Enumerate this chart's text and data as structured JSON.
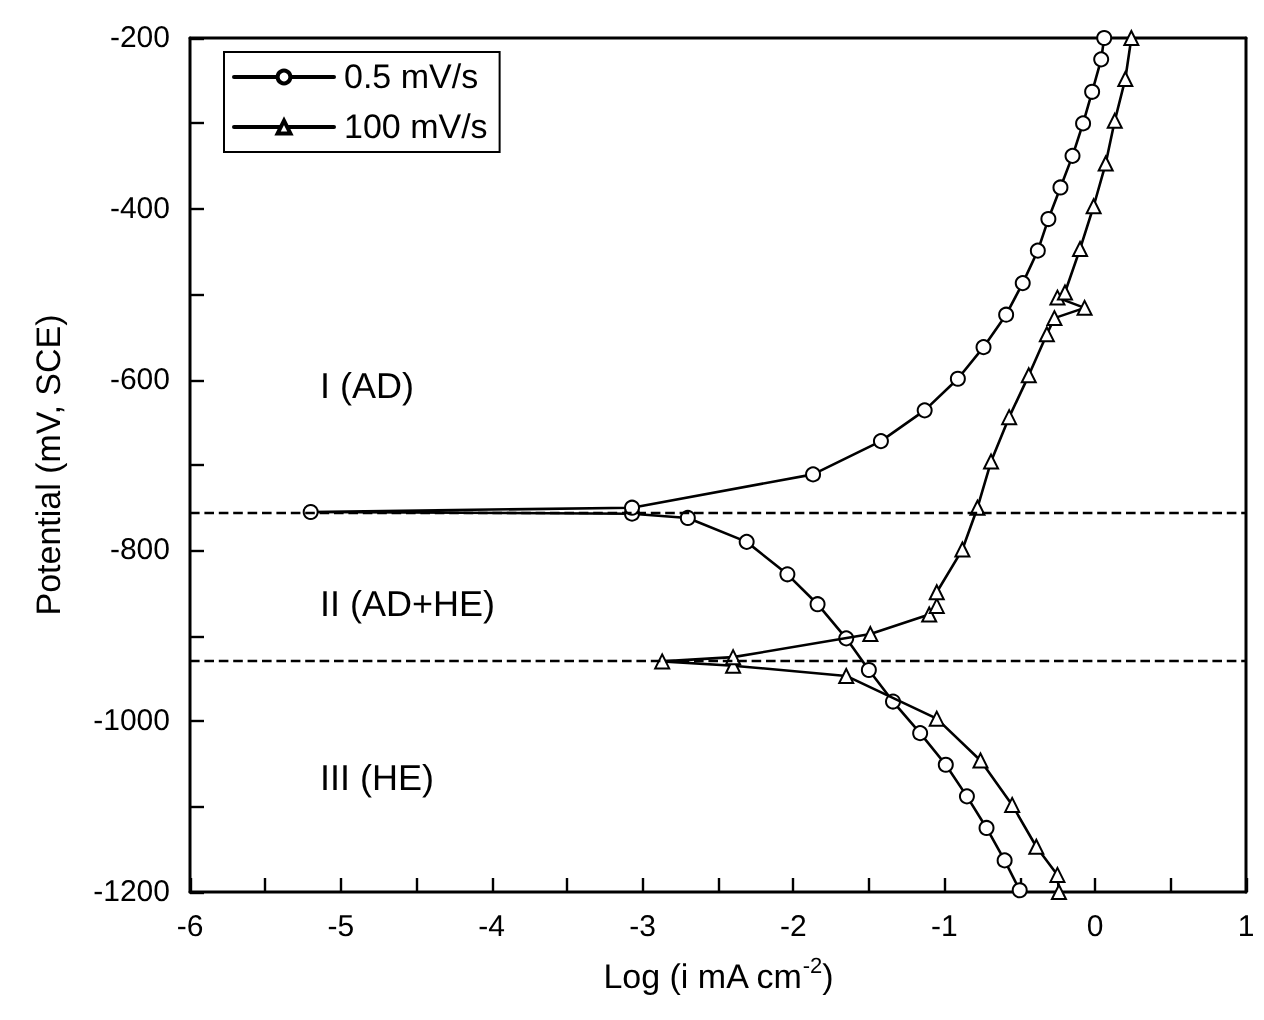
{
  "chart_data": {
    "type": "line",
    "xlabel": "Log (i mA cm$^{-2}$)",
    "ylabel": "Potential (mV, SCE)",
    "xlim": [
      -6,
      1
    ],
    "xticks": [
      -6,
      -5,
      -4,
      -3,
      -2,
      -1,
      0,
      1
    ],
    "ylim": [
      -1200,
      -200
    ],
    "yticks": [
      -1200,
      -1000,
      -800,
      -600,
      -400,
      -200
    ],
    "grid": false,
    "legend": "top left",
    "line_style": "solid",
    "annotations": [
      "I (AD)",
      "II (AD+HE)",
      "III (HE)"
    ],
    "ref_lines": [
      {
        "axis": "y",
        "value": -755,
        "line_style": "dashed"
      },
      {
        "axis": "y",
        "value": -930,
        "line_style": "dashed"
      }
    ],
    "series": [
      {
        "name": "0.5 mV/s",
        "color": "#000000",
        "marker": "circle",
        "x": [
          -0.5,
          -0.6,
          -0.72,
          -0.85,
          -0.99,
          -1.16,
          -1.34,
          -1.5,
          -1.65,
          -1.84,
          -2.04,
          -2.31,
          -2.7,
          -3.07,
          -5.2,
          -3.07,
          -1.87,
          -1.42,
          -1.13,
          -0.91,
          -0.74,
          -0.59,
          -0.48,
          -0.38,
          -0.31,
          -0.23,
          -0.15,
          -0.08,
          -0.02,
          0.04,
          0.06
        ],
        "values": [
          -1198,
          -1163,
          -1125,
          -1088,
          -1051,
          -1014,
          -977,
          -940,
          -903,
          -863,
          -828,
          -790,
          -762,
          -757,
          -755,
          -750,
          -711,
          -672,
          -636,
          -599,
          -562,
          -524,
          -487,
          -449,
          -412,
          -375,
          -338,
          -300,
          -263,
          -225,
          -200
        ]
      },
      {
        "name": "100 mV/s",
        "color": "#000000",
        "marker": "triangle",
        "x": [
          -0.24,
          -0.25,
          -0.39,
          -0.55,
          -0.76,
          -1.05,
          -1.65,
          -2.4,
          -2.87,
          -2.4,
          -1.49,
          -1.1,
          -1.05,
          -1.05,
          -0.88,
          -0.78,
          -0.69,
          -0.57,
          -0.44,
          -0.32,
          -0.27,
          -0.07,
          -0.25,
          -0.2,
          -0.1,
          -0.01,
          0.07,
          0.13,
          0.2,
          0.24
        ],
        "values": [
          -1200,
          -1180,
          -1147,
          -1098,
          -1046,
          -997,
          -947,
          -935,
          -930,
          -925,
          -898,
          -875,
          -865,
          -849,
          -799,
          -750,
          -696,
          -644,
          -595,
          -547,
          -528,
          -516,
          -504,
          -498,
          -447,
          -397,
          -347,
          -297,
          -248,
          -200
        ]
      }
    ]
  }
}
